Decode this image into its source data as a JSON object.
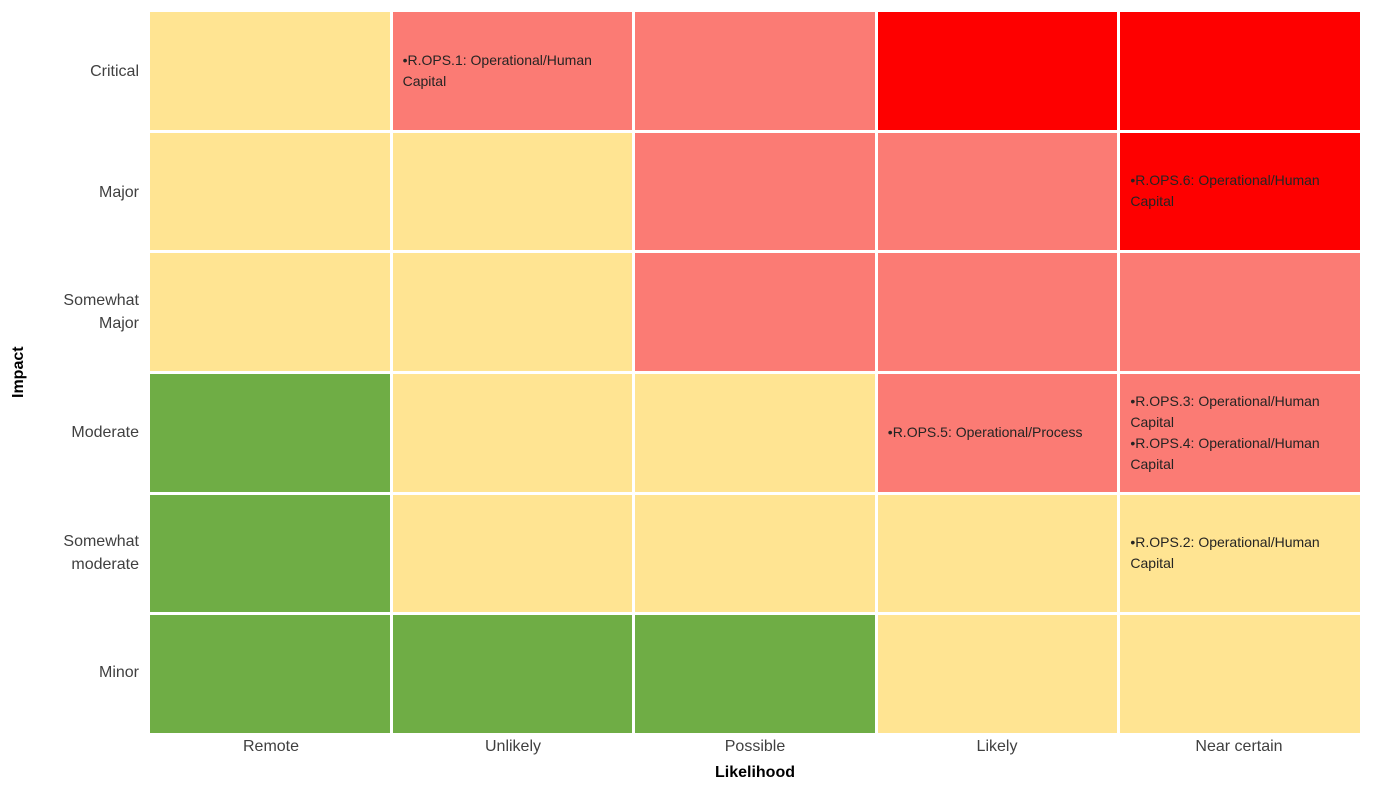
{
  "chart_data": {
    "type": "heatmap",
    "title": "",
    "xlabel": "Likelihood",
    "ylabel": "Impact",
    "legend_position": "none",
    "grid_gap_color": "#FFFFFF",
    "label_color": "#404040",
    "annotation_color": "#252423",
    "columns": [
      "Remote",
      "Unlikely",
      "Possible",
      "Likely",
      "Near certain"
    ],
    "rows": [
      "Critical",
      "Major",
      "Somewhat Major",
      "Moderate",
      "Somewhat moderate",
      "Minor"
    ],
    "severity_colors": {
      "low": "#6FAD45",
      "medium": "#FFE492",
      "high": "#FB7B74",
      "extreme": "#FE0000"
    },
    "cell_severity": [
      [
        "medium",
        "high",
        "high",
        "extreme",
        "extreme"
      ],
      [
        "medium",
        "medium",
        "high",
        "high",
        "extreme"
      ],
      [
        "medium",
        "medium",
        "high",
        "high",
        "high"
      ],
      [
        "low",
        "medium",
        "medium",
        "high",
        "high"
      ],
      [
        "low",
        "medium",
        "medium",
        "medium",
        "medium"
      ],
      [
        "low",
        "low",
        "low",
        "medium",
        "medium"
      ]
    ],
    "cell_labels": [
      [
        [],
        [
          "•R.OPS.1: Operational/Human Capital"
        ],
        [],
        [],
        []
      ],
      [
        [],
        [],
        [],
        [],
        [
          "•R.OPS.6: Operational/Human Capital"
        ]
      ],
      [
        [],
        [],
        [],
        [],
        []
      ],
      [
        [],
        [],
        [],
        [
          "•R.OPS.5: Operational/Process"
        ],
        [
          "•R.OPS.3: Operational/Human Capital",
          "•R.OPS.4: Operational/Human Capital"
        ]
      ],
      [
        [],
        [],
        [],
        [],
        [
          "•R.OPS.2: Operational/Human Capital"
        ]
      ],
      [
        [],
        [],
        [],
        [],
        []
      ]
    ]
  }
}
